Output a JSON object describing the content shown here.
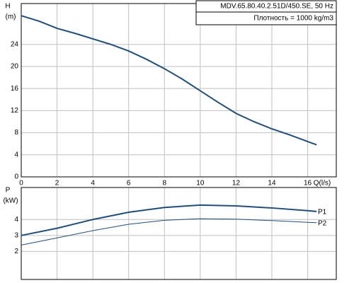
{
  "chart_data": [
    {
      "type": "line",
      "y_label": "H",
      "y_unit": "(m)",
      "x_label": "Q(l/s)",
      "annotations": [
        "MDV.65.80.40.2.51D/450.SE, 50 Hz",
        "Плотность = 1000 kg/m3"
      ],
      "x": [
        0,
        1,
        2,
        3,
        4,
        5,
        6,
        7,
        8,
        9,
        10,
        11,
        12,
        13,
        14,
        15,
        16,
        16.5
      ],
      "values": [
        29.2,
        28.2,
        26.9,
        26.0,
        25.0,
        24.0,
        22.8,
        21.3,
        19.6,
        17.7,
        15.6,
        13.5,
        11.5,
        10.0,
        8.7,
        7.6,
        6.4,
        5.8
      ],
      "color": "#1f4e79",
      "xlim": [
        0,
        17.6
      ],
      "xticks": [
        0,
        2,
        4,
        6,
        8,
        10,
        12,
        14,
        16
      ],
      "ylim": [
        0,
        31.4
      ],
      "yticks": [
        0,
        4,
        8,
        12,
        16,
        20,
        24
      ],
      "grid": true
    },
    {
      "type": "line",
      "y_label": "P",
      "y_unit": "(kW)",
      "x": [
        0,
        2,
        4,
        6,
        8,
        10,
        12,
        14,
        16,
        16.5
      ],
      "series": [
        {
          "name": "P1",
          "color": "#1f4e79",
          "values": [
            3.0,
            3.45,
            4.0,
            4.45,
            4.75,
            4.9,
            4.85,
            4.72,
            4.55,
            4.5
          ]
        },
        {
          "name": "P2",
          "color": "#1f4e79",
          "values": [
            2.4,
            2.85,
            3.3,
            3.7,
            3.95,
            4.05,
            4.02,
            3.93,
            3.82,
            3.8
          ]
        }
      ],
      "xlim": [
        0,
        17.6
      ],
      "xticks": [
        0,
        2,
        4,
        6,
        8,
        10,
        12,
        14,
        16
      ],
      "ylim": [
        0.25,
        6
      ],
      "yticks": [
        2,
        3,
        4
      ],
      "grid": true
    }
  ]
}
